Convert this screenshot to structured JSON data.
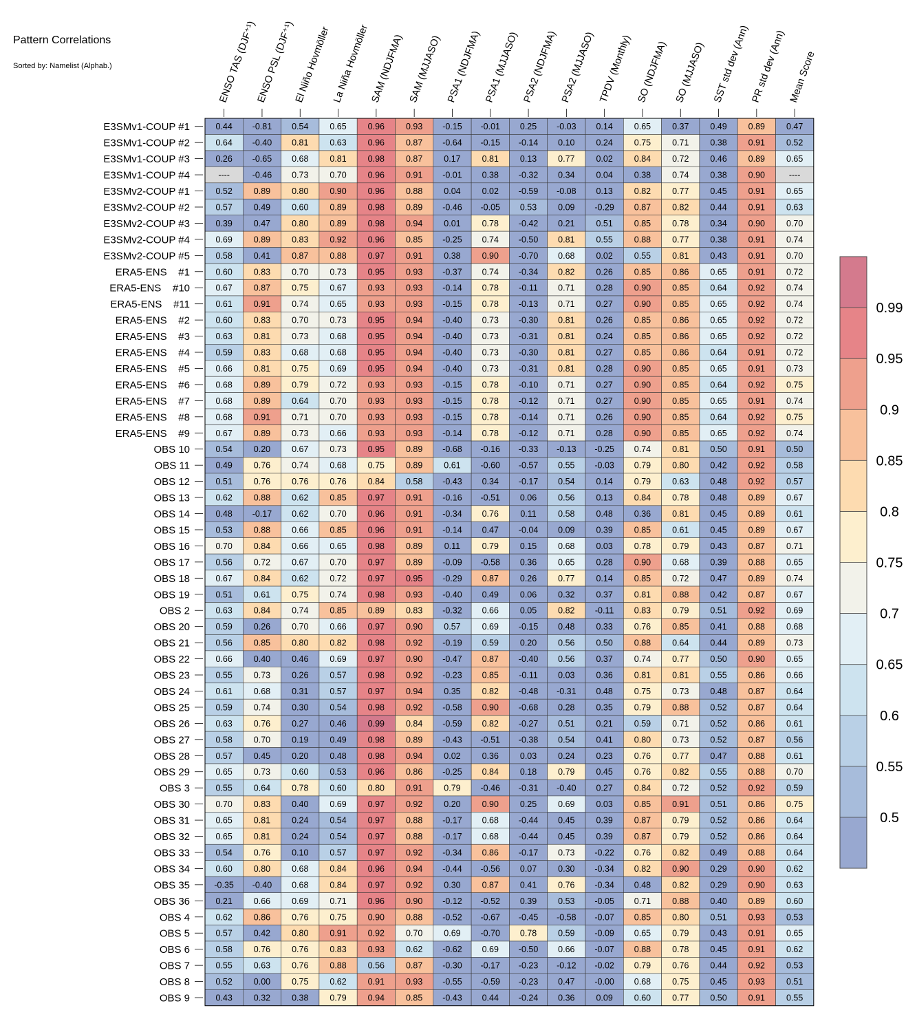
{
  "title": "Pattern Correlations",
  "subtitle": "Sorted by: Namelist (Alphab.)",
  "chart_data": {
    "type": "heatmap",
    "columns": [
      "ENSO TAS (DJF⁺¹)",
      "ENSO PSL (DJF⁺¹)",
      "El Niño Hovmöller",
      "La Niña Hovmöller",
      "SAM (NDJFMA)",
      "SAM (MJJASO)",
      "PSA1 (NDJFMA)",
      "PSA1 (MJJASO)",
      "PSA2 (NDJFMA)",
      "PSA2 (MJJASO)",
      "TPDV (Monthly)",
      "SO (NDJFMA)",
      "SO (MJJASO)",
      "SST std dev (Ann)",
      "PR std dev (Ann)",
      "Mean Score"
    ],
    "rows": [
      "E3SMv1-COUP #1",
      "E3SMv1-COUP #2",
      "E3SMv1-COUP #3",
      "E3SMv1-COUP #4",
      "E3SMv2-COUP #1",
      "E3SMv2-COUP #2",
      "E3SMv2-COUP #3",
      "E3SMv2-COUP #4",
      "E3SMv2-COUP #5",
      "ERA5-ENS    #1",
      "ERA5-ENS    #10",
      "ERA5-ENS    #11",
      "ERA5-ENS    #2",
      "ERA5-ENS    #3",
      "ERA5-ENS    #4",
      "ERA5-ENS    #5",
      "ERA5-ENS    #6",
      "ERA5-ENS    #7",
      "ERA5-ENS    #8",
      "ERA5-ENS    #9",
      "OBS 10",
      "OBS 11",
      "OBS 12",
      "OBS 13",
      "OBS 14",
      "OBS 15",
      "OBS 16",
      "OBS 17",
      "OBS 18",
      "OBS 19",
      "OBS 2",
      "OBS 20",
      "OBS 21",
      "OBS 22",
      "OBS 23",
      "OBS 24",
      "OBS 25",
      "OBS 26",
      "OBS 27",
      "OBS 28",
      "OBS 29",
      "OBS 3",
      "OBS 30",
      "OBS 31",
      "OBS 32",
      "OBS 33",
      "OBS 34",
      "OBS 35",
      "OBS 36",
      "OBS 4",
      "OBS 5",
      "OBS 6",
      "OBS 7",
      "OBS 8",
      "OBS 9"
    ],
    "values": [
      [
        "0.44",
        "-0.81",
        "0.54",
        "0.65",
        "0.96",
        "0.93",
        "-0.15",
        "-0.01",
        "0.25",
        "-0.03",
        "0.14",
        "0.65",
        "0.37",
        "0.49",
        "0.89",
        "0.47"
      ],
      [
        "0.64",
        "-0.40",
        "0.81",
        "0.63",
        "0.96",
        "0.87",
        "-0.64",
        "-0.15",
        "-0.14",
        "0.10",
        "0.24",
        "0.75",
        "0.71",
        "0.38",
        "0.91",
        "0.52"
      ],
      [
        "0.26",
        "-0.65",
        "0.68",
        "0.81",
        "0.98",
        "0.87",
        "0.17",
        "0.81",
        "0.13",
        "0.77",
        "0.02",
        "0.84",
        "0.72",
        "0.46",
        "0.89",
        "0.65"
      ],
      [
        "----",
        "-0.46",
        "0.73",
        "0.70",
        "0.96",
        "0.91",
        "-0.01",
        "0.38",
        "-0.32",
        "0.34",
        "0.04",
        "0.38",
        "0.74",
        "0.38",
        "0.90",
        "----"
      ],
      [
        "0.52",
        "0.89",
        "0.80",
        "0.90",
        "0.96",
        "0.88",
        "0.04",
        "0.02",
        "-0.59",
        "-0.08",
        "0.13",
        "0.82",
        "0.77",
        "0.45",
        "0.91",
        "0.65"
      ],
      [
        "0.57",
        "0.49",
        "0.60",
        "0.89",
        "0.98",
        "0.89",
        "-0.46",
        "-0.05",
        "0.53",
        "0.09",
        "-0.29",
        "0.87",
        "0.82",
        "0.44",
        "0.91",
        "0.63"
      ],
      [
        "0.39",
        "0.47",
        "0.80",
        "0.89",
        "0.98",
        "0.94",
        "0.01",
        "0.78",
        "-0.42",
        "0.21",
        "0.51",
        "0.85",
        "0.78",
        "0.34",
        "0.90",
        "0.70"
      ],
      [
        "0.69",
        "0.89",
        "0.83",
        "0.92",
        "0.96",
        "0.85",
        "-0.25",
        "0.74",
        "-0.50",
        "0.81",
        "0.55",
        "0.88",
        "0.77",
        "0.38",
        "0.91",
        "0.74"
      ],
      [
        "0.58",
        "0.41",
        "0.87",
        "0.88",
        "0.97",
        "0.91",
        "0.38",
        "0.90",
        "-0.70",
        "0.68",
        "0.02",
        "0.55",
        "0.81",
        "0.43",
        "0.91",
        "0.70"
      ],
      [
        "0.60",
        "0.83",
        "0.70",
        "0.73",
        "0.95",
        "0.93",
        "-0.37",
        "0.74",
        "-0.34",
        "0.82",
        "0.26",
        "0.85",
        "0.86",
        "0.65",
        "0.91",
        "0.72"
      ],
      [
        "0.67",
        "0.87",
        "0.75",
        "0.67",
        "0.93",
        "0.93",
        "-0.14",
        "0.78",
        "-0.11",
        "0.71",
        "0.28",
        "0.90",
        "0.85",
        "0.64",
        "0.92",
        "0.74"
      ],
      [
        "0.61",
        "0.91",
        "0.74",
        "0.65",
        "0.93",
        "0.93",
        "-0.15",
        "0.78",
        "-0.13",
        "0.71",
        "0.27",
        "0.90",
        "0.85",
        "0.65",
        "0.92",
        "0.74"
      ],
      [
        "0.60",
        "0.83",
        "0.70",
        "0.73",
        "0.95",
        "0.94",
        "-0.40",
        "0.73",
        "-0.30",
        "0.81",
        "0.26",
        "0.85",
        "0.86",
        "0.65",
        "0.92",
        "0.72"
      ],
      [
        "0.63",
        "0.81",
        "0.73",
        "0.68",
        "0.95",
        "0.94",
        "-0.40",
        "0.73",
        "-0.31",
        "0.81",
        "0.24",
        "0.85",
        "0.86",
        "0.65",
        "0.92",
        "0.72"
      ],
      [
        "0.59",
        "0.83",
        "0.68",
        "0.68",
        "0.95",
        "0.94",
        "-0.40",
        "0.73",
        "-0.30",
        "0.81",
        "0.27",
        "0.85",
        "0.86",
        "0.64",
        "0.91",
        "0.72"
      ],
      [
        "0.66",
        "0.81",
        "0.75",
        "0.69",
        "0.95",
        "0.94",
        "-0.40",
        "0.73",
        "-0.31",
        "0.81",
        "0.28",
        "0.90",
        "0.85",
        "0.65",
        "0.91",
        "0.73"
      ],
      [
        "0.68",
        "0.89",
        "0.79",
        "0.72",
        "0.93",
        "0.93",
        "-0.15",
        "0.78",
        "-0.10",
        "0.71",
        "0.27",
        "0.90",
        "0.85",
        "0.64",
        "0.92",
        "0.75"
      ],
      [
        "0.68",
        "0.89",
        "0.64",
        "0.70",
        "0.93",
        "0.93",
        "-0.15",
        "0.78",
        "-0.12",
        "0.71",
        "0.27",
        "0.90",
        "0.85",
        "0.65",
        "0.91",
        "0.74"
      ],
      [
        "0.68",
        "0.91",
        "0.71",
        "0.70",
        "0.93",
        "0.93",
        "-0.15",
        "0.78",
        "-0.14",
        "0.71",
        "0.26",
        "0.90",
        "0.85",
        "0.64",
        "0.92",
        "0.75"
      ],
      [
        "0.67",
        "0.89",
        "0.73",
        "0.66",
        "0.93",
        "0.93",
        "-0.14",
        "0.78",
        "-0.12",
        "0.71",
        "0.28",
        "0.90",
        "0.85",
        "0.65",
        "0.92",
        "0.74"
      ],
      [
        "0.54",
        "0.20",
        "0.67",
        "0.73",
        "0.95",
        "0.89",
        "-0.68",
        "-0.16",
        "-0.33",
        "-0.13",
        "-0.25",
        "0.74",
        "0.81",
        "0.50",
        "0.91",
        "0.50"
      ],
      [
        "0.49",
        "0.76",
        "0.74",
        "0.68",
        "0.75",
        "0.89",
        "0.61",
        "-0.60",
        "-0.57",
        "0.55",
        "-0.03",
        "0.79",
        "0.80",
        "0.42",
        "0.92",
        "0.58"
      ],
      [
        "0.51",
        "0.76",
        "0.76",
        "0.76",
        "0.84",
        "0.58",
        "-0.43",
        "0.34",
        "-0.17",
        "0.54",
        "0.14",
        "0.79",
        "0.63",
        "0.48",
        "0.92",
        "0.57"
      ],
      [
        "0.62",
        "0.88",
        "0.62",
        "0.85",
        "0.97",
        "0.91",
        "-0.16",
        "-0.51",
        "0.06",
        "0.56",
        "0.13",
        "0.84",
        "0.78",
        "0.48",
        "0.89",
        "0.67"
      ],
      [
        "0.48",
        "-0.17",
        "0.62",
        "0.70",
        "0.96",
        "0.91",
        "-0.34",
        "0.76",
        "0.11",
        "0.58",
        "0.48",
        "0.36",
        "0.81",
        "0.45",
        "0.89",
        "0.61"
      ],
      [
        "0.53",
        "0.88",
        "0.66",
        "0.85",
        "0.96",
        "0.91",
        "-0.14",
        "0.47",
        "-0.04",
        "0.09",
        "0.39",
        "0.85",
        "0.61",
        "0.45",
        "0.89",
        "0.67"
      ],
      [
        "0.70",
        "0.84",
        "0.66",
        "0.65",
        "0.98",
        "0.89",
        "0.11",
        "0.79",
        "0.15",
        "0.68",
        "0.03",
        "0.78",
        "0.79",
        "0.43",
        "0.87",
        "0.71"
      ],
      [
        "0.56",
        "0.72",
        "0.67",
        "0.70",
        "0.97",
        "0.89",
        "-0.09",
        "-0.58",
        "0.36",
        "0.65",
        "0.28",
        "0.90",
        "0.68",
        "0.39",
        "0.88",
        "0.65"
      ],
      [
        "0.67",
        "0.84",
        "0.62",
        "0.72",
        "0.97",
        "0.95",
        "-0.29",
        "0.87",
        "0.26",
        "0.77",
        "0.14",
        "0.85",
        "0.72",
        "0.47",
        "0.89",
        "0.74"
      ],
      [
        "0.51",
        "0.61",
        "0.75",
        "0.74",
        "0.98",
        "0.93",
        "-0.40",
        "0.49",
        "0.06",
        "0.32",
        "0.37",
        "0.81",
        "0.88",
        "0.42",
        "0.87",
        "0.67"
      ],
      [
        "0.63",
        "0.84",
        "0.74",
        "0.85",
        "0.89",
        "0.83",
        "-0.32",
        "0.66",
        "0.05",
        "0.82",
        "-0.11",
        "0.83",
        "0.79",
        "0.51",
        "0.92",
        "0.69"
      ],
      [
        "0.59",
        "0.26",
        "0.70",
        "0.66",
        "0.97",
        "0.90",
        "0.57",
        "0.69",
        "-0.15",
        "0.48",
        "0.33",
        "0.76",
        "0.85",
        "0.41",
        "0.88",
        "0.68"
      ],
      [
        "0.56",
        "0.85",
        "0.80",
        "0.82",
        "0.98",
        "0.92",
        "-0.19",
        "0.59",
        "0.20",
        "0.56",
        "0.50",
        "0.88",
        "0.64",
        "0.44",
        "0.89",
        "0.73"
      ],
      [
        "0.66",
        "0.40",
        "0.46",
        "0.69",
        "0.97",
        "0.90",
        "-0.47",
        "0.87",
        "-0.40",
        "0.56",
        "0.37",
        "0.74",
        "0.77",
        "0.50",
        "0.90",
        "0.65"
      ],
      [
        "0.55",
        "0.73",
        "0.26",
        "0.57",
        "0.98",
        "0.92",
        "-0.23",
        "0.85",
        "-0.11",
        "0.03",
        "0.36",
        "0.81",
        "0.81",
        "0.55",
        "0.86",
        "0.66"
      ],
      [
        "0.61",
        "0.68",
        "0.31",
        "0.57",
        "0.97",
        "0.94",
        "0.35",
        "0.82",
        "-0.48",
        "-0.31",
        "0.48",
        "0.75",
        "0.73",
        "0.48",
        "0.87",
        "0.64"
      ],
      [
        "0.59",
        "0.74",
        "0.30",
        "0.54",
        "0.98",
        "0.92",
        "-0.58",
        "0.90",
        "-0.68",
        "0.28",
        "0.35",
        "0.79",
        "0.88",
        "0.52",
        "0.87",
        "0.64"
      ],
      [
        "0.63",
        "0.76",
        "0.27",
        "0.46",
        "0.99",
        "0.84",
        "-0.59",
        "0.82",
        "-0.27",
        "0.51",
        "0.21",
        "0.59",
        "0.71",
        "0.52",
        "0.86",
        "0.61"
      ],
      [
        "0.58",
        "0.70",
        "0.19",
        "0.49",
        "0.98",
        "0.89",
        "-0.43",
        "-0.51",
        "-0.38",
        "0.54",
        "0.41",
        "0.80",
        "0.73",
        "0.52",
        "0.87",
        "0.56"
      ],
      [
        "0.57",
        "0.45",
        "0.20",
        "0.48",
        "0.98",
        "0.94",
        "0.02",
        "0.36",
        "0.03",
        "0.24",
        "0.23",
        "0.76",
        "0.77",
        "0.47",
        "0.88",
        "0.61"
      ],
      [
        "0.65",
        "0.73",
        "0.60",
        "0.53",
        "0.96",
        "0.86",
        "-0.25",
        "0.84",
        "0.18",
        "0.79",
        "0.45",
        "0.76",
        "0.82",
        "0.55",
        "0.88",
        "0.70"
      ],
      [
        "0.55",
        "0.64",
        "0.78",
        "0.60",
        "0.80",
        "0.91",
        "0.79",
        "-0.46",
        "-0.31",
        "-0.40",
        "0.27",
        "0.84",
        "0.72",
        "0.52",
        "0.92",
        "0.59"
      ],
      [
        "0.70",
        "0.83",
        "0.40",
        "0.69",
        "0.97",
        "0.92",
        "0.20",
        "0.90",
        "0.25",
        "0.69",
        "0.03",
        "0.85",
        "0.91",
        "0.51",
        "0.86",
        "0.75"
      ],
      [
        "0.65",
        "0.81",
        "0.24",
        "0.54",
        "0.97",
        "0.88",
        "-0.17",
        "0.68",
        "-0.44",
        "0.45",
        "0.39",
        "0.87",
        "0.79",
        "0.52",
        "0.86",
        "0.64"
      ],
      [
        "0.65",
        "0.81",
        "0.24",
        "0.54",
        "0.97",
        "0.88",
        "-0.17",
        "0.68",
        "-0.44",
        "0.45",
        "0.39",
        "0.87",
        "0.79",
        "0.52",
        "0.86",
        "0.64"
      ],
      [
        "0.54",
        "0.76",
        "0.10",
        "0.57",
        "0.97",
        "0.92",
        "-0.34",
        "0.86",
        "-0.17",
        "0.73",
        "-0.22",
        "0.76",
        "0.82",
        "0.49",
        "0.88",
        "0.64"
      ],
      [
        "0.60",
        "0.80",
        "0.68",
        "0.84",
        "0.96",
        "0.94",
        "-0.44",
        "-0.56",
        "0.07",
        "0.30",
        "-0.34",
        "0.82",
        "0.90",
        "0.29",
        "0.90",
        "0.62"
      ],
      [
        "-0.35",
        "-0.40",
        "0.68",
        "0.84",
        "0.97",
        "0.92",
        "0.30",
        "0.87",
        "0.41",
        "0.76",
        "-0.34",
        "0.48",
        "0.82",
        "0.29",
        "0.90",
        "0.63"
      ],
      [
        "0.21",
        "0.66",
        "0.69",
        "0.71",
        "0.96",
        "0.90",
        "-0.12",
        "-0.52",
        "0.39",
        "0.53",
        "-0.05",
        "0.71",
        "0.88",
        "0.40",
        "0.89",
        "0.60"
      ],
      [
        "0.62",
        "0.86",
        "0.76",
        "0.75",
        "0.90",
        "0.88",
        "-0.52",
        "-0.67",
        "-0.45",
        "-0.58",
        "-0.07",
        "0.85",
        "0.80",
        "0.51",
        "0.93",
        "0.53"
      ],
      [
        "0.57",
        "0.42",
        "0.80",
        "0.91",
        "0.92",
        "0.70",
        "0.69",
        "-0.70",
        "0.78",
        "0.59",
        "-0.09",
        "0.65",
        "0.79",
        "0.43",
        "0.91",
        "0.65"
      ],
      [
        "0.58",
        "0.76",
        "0.76",
        "0.83",
        "0.93",
        "0.62",
        "-0.62",
        "0.69",
        "-0.50",
        "0.66",
        "-0.07",
        "0.88",
        "0.78",
        "0.45",
        "0.91",
        "0.62"
      ],
      [
        "0.55",
        "0.63",
        "0.76",
        "0.88",
        "0.56",
        "0.87",
        "-0.30",
        "-0.17",
        "-0.23",
        "-0.12",
        "-0.02",
        "0.79",
        "0.76",
        "0.44",
        "0.92",
        "0.53"
      ],
      [
        "0.52",
        "0.00",
        "0.75",
        "0.62",
        "0.91",
        "0.93",
        "-0.55",
        "-0.59",
        "-0.23",
        "0.47",
        "-0.00",
        "0.68",
        "0.75",
        "0.45",
        "0.93",
        "0.51"
      ],
      [
        "0.43",
        "0.32",
        "0.38",
        "0.79",
        "0.94",
        "0.85",
        "-0.43",
        "0.44",
        "-0.24",
        "0.36",
        "0.09",
        "0.60",
        "0.77",
        "0.50",
        "0.91",
        "0.55"
      ]
    ],
    "missing_label": "----",
    "missing_color": "#d9d9d9",
    "colorbar": {
      "ticks": [
        "0.99",
        "0.95",
        "0.9",
        "0.85",
        "0.8",
        "0.75",
        "0.7",
        "0.65",
        "0.6",
        "0.55",
        "0.5"
      ],
      "levels": [
        0.5,
        0.55,
        0.6,
        0.65,
        0.7,
        0.75,
        0.8,
        0.85,
        0.9,
        0.95,
        0.99
      ],
      "colors": [
        "#98a8d0",
        "#a7bcdb",
        "#b9d0e6",
        "#cde3ef",
        "#e2eff5",
        "#f2f2ea",
        "#fdefce",
        "#fddbb0",
        "#f8c19c",
        "#eea08d",
        "#e68488",
        "#d47a8d"
      ]
    }
  }
}
